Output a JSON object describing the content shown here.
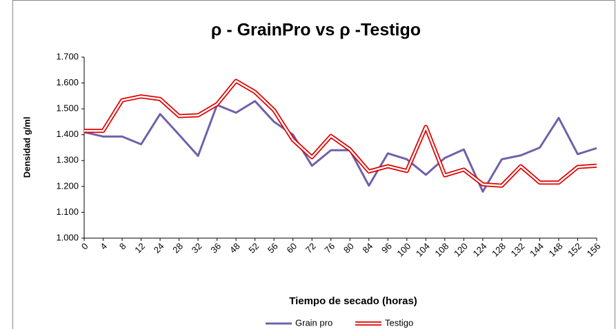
{
  "chart_data": {
    "type": "line",
    "title": "ρ - GrainPro vs  ρ -Testigo",
    "x_label": "Tiempo de secado (horas)",
    "y_label": "Densidad g/ml",
    "categories": [
      "0",
      "4",
      "8",
      "12",
      "24",
      "28",
      "32",
      "36",
      "48",
      "52",
      "56",
      "60",
      "72",
      "76",
      "80",
      "84",
      "96",
      "100",
      "104",
      "108",
      "120",
      "124",
      "128",
      "132",
      "144",
      "148",
      "152",
      "156"
    ],
    "series": [
      {
        "name": "Grain pro",
        "color": "#7060a8",
        "values": [
          1.41,
          1.393,
          1.393,
          1.363,
          1.48,
          1.4,
          1.318,
          1.515,
          1.485,
          1.53,
          1.45,
          1.4,
          1.28,
          1.34,
          1.34,
          1.203,
          1.328,
          1.305,
          1.245,
          1.31,
          1.343,
          1.18,
          1.305,
          1.32,
          1.35,
          1.465,
          1.325,
          1.348
        ]
      },
      {
        "name": "Testigo",
        "color": "#e00000",
        "values": [
          1.415,
          1.415,
          1.533,
          1.548,
          1.538,
          1.472,
          1.475,
          1.518,
          1.608,
          1.565,
          1.495,
          1.38,
          1.313,
          1.395,
          1.343,
          1.258,
          1.278,
          1.26,
          1.43,
          1.243,
          1.265,
          1.208,
          1.203,
          1.278,
          1.215,
          1.215,
          1.275,
          1.28
        ]
      }
    ],
    "ylim": [
      1.0,
      1.7
    ],
    "yticks": [
      {
        "value": 1.0,
        "label": "1.000"
      },
      {
        "value": 1.1,
        "label": "1.100"
      },
      {
        "value": 1.2,
        "label": "1.200"
      },
      {
        "value": 1.3,
        "label": "1.300"
      },
      {
        "value": 1.4,
        "label": "1.400"
      },
      {
        "value": 1.5,
        "label": "1.500"
      },
      {
        "value": 1.6,
        "label": "1.600"
      },
      {
        "value": 1.7,
        "label": "1.700"
      }
    ]
  }
}
